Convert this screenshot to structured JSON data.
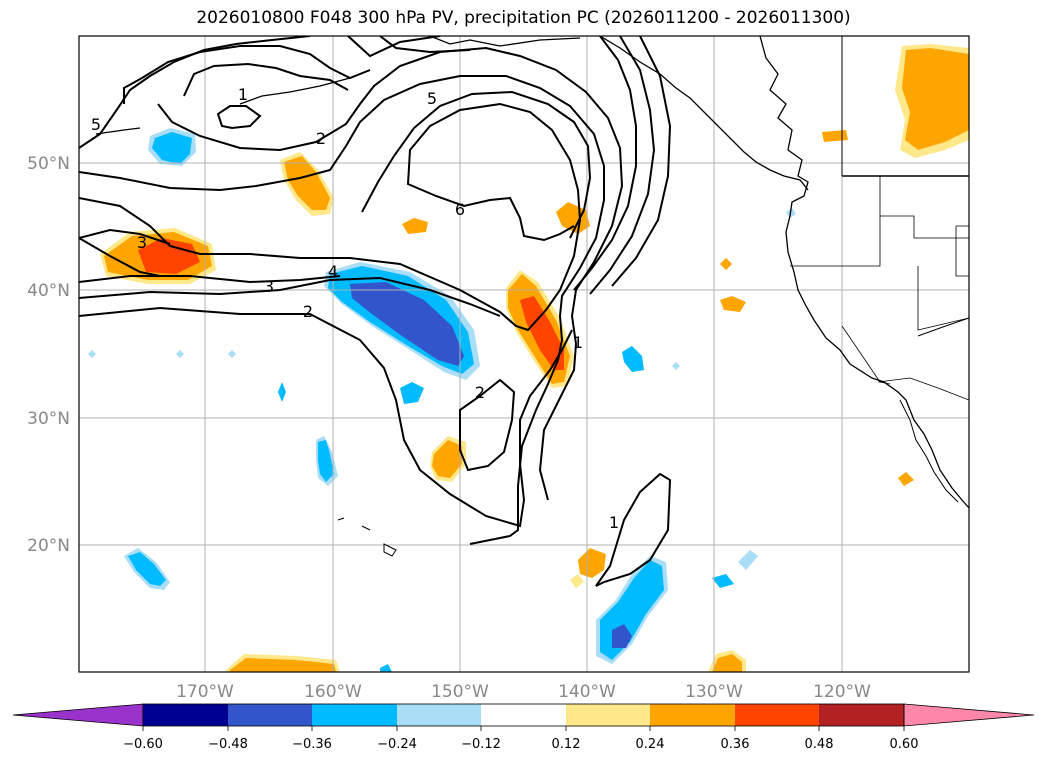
{
  "title": "2026010800 F048 300 hPa PV, precipitation PC (2026011200 - 2026011300)",
  "lat_labels": [
    "50°N",
    "40°N",
    "30°N",
    "20°N"
  ],
  "lon_labels": [
    "170°W",
    "160°W",
    "150°W",
    "140°W",
    "130°W",
    "120°W"
  ],
  "colorbar": {
    "tick_labels": [
      "−0.60",
      "−0.48",
      "−0.36",
      "−0.24",
      "−0.12",
      "0.12",
      "0.24",
      "0.36",
      "0.48",
      "0.60"
    ],
    "colors": [
      "#9933cc",
      "#000090",
      "#3355cc",
      "#00bbff",
      "#aaddf6",
      "#ffffff",
      "#ffe88a",
      "#ffa500",
      "#ff4400",
      "#b22222",
      "#ff88aa"
    ]
  },
  "contour_labels": [
    "1",
    "2",
    "3",
    "4",
    "5",
    "6",
    "2",
    "3",
    "5",
    "1",
    "2",
    "1"
  ],
  "shading_colors": {
    "light_blue": "#aaddf6",
    "blue": "#00bbff",
    "dark_blue": "#3355cc",
    "yellow": "#ffe88a",
    "orange": "#ffa500",
    "red": "#ff4400"
  }
}
